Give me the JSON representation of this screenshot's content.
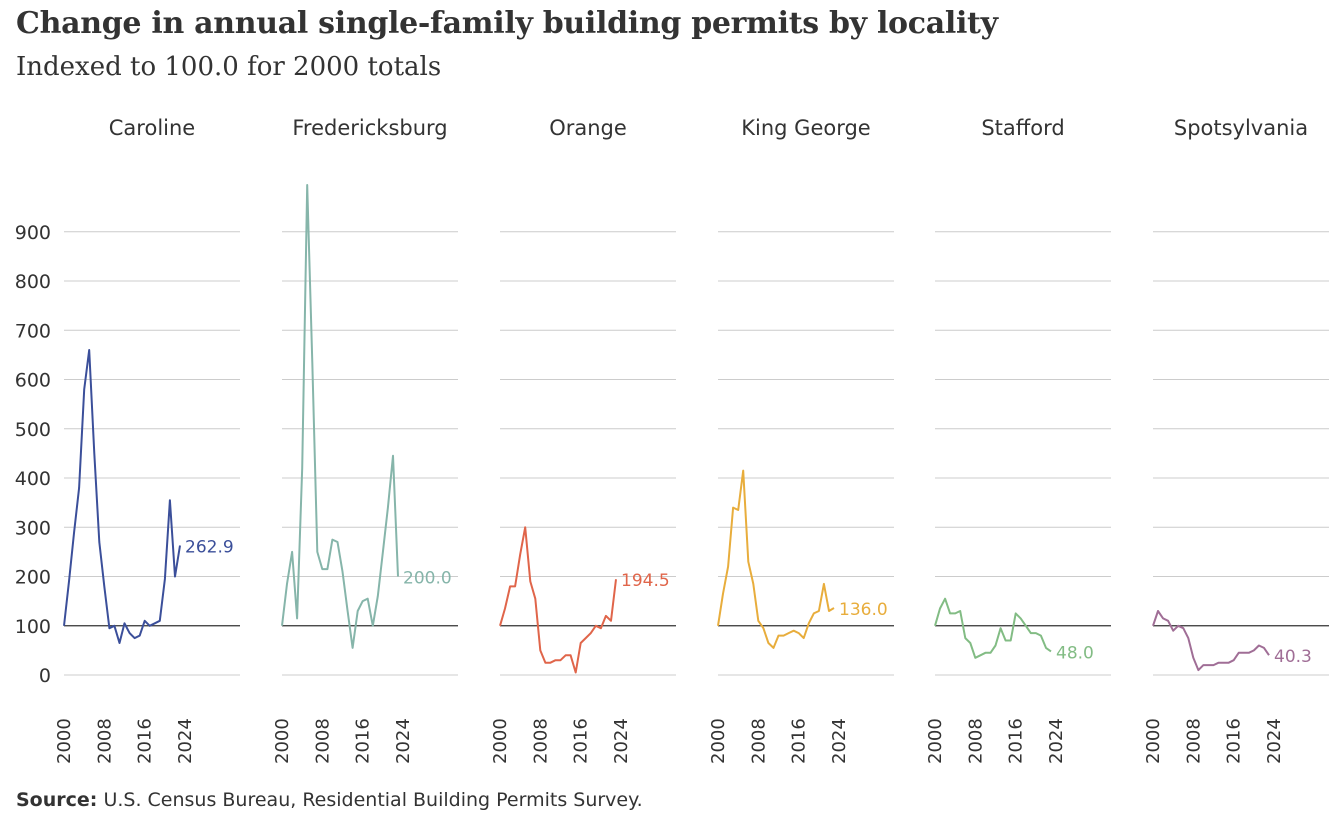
{
  "title": "Change in annual single-family building permits by locality",
  "subtitle": "Indexed to 100.0 for 2000 totals",
  "source_label": "Source:",
  "source_text": "U.S. Census Bureau, Residential Building Permits Survey.",
  "chart_data": {
    "type": "line",
    "layout": "small-multiples",
    "x_ticks": [
      "2000",
      "2008",
      "2016",
      "2024"
    ],
    "y_ticks": [
      "0",
      "100",
      "200",
      "300",
      "400",
      "500",
      "600",
      "700",
      "800",
      "900"
    ],
    "ylim": [
      -60,
      1000
    ],
    "xlim": [
      2000,
      2023
    ],
    "reference_line": 100,
    "grid": "horizontal",
    "years": [
      2000,
      2001,
      2002,
      2003,
      2004,
      2005,
      2006,
      2007,
      2008,
      2009,
      2010,
      2011,
      2012,
      2013,
      2014,
      2015,
      2016,
      2017,
      2018,
      2019,
      2020,
      2021,
      2022,
      2023
    ],
    "panels": [
      {
        "name": "Caroline",
        "color": "#3b4f9a",
        "end_label": "262.9",
        "values": [
          100,
          190,
          290,
          380,
          580,
          660,
          450,
          270,
          180,
          95,
          100,
          65,
          105,
          85,
          75,
          80,
          110,
          100,
          105,
          110,
          195,
          355,
          200,
          262.9
        ]
      },
      {
        "name": "Fredericksburg",
        "color": "#86b5aa",
        "end_label": "200.0",
        "values": [
          100,
          185,
          250,
          115,
          420,
          995,
          635,
          250,
          215,
          215,
          275,
          270,
          210,
          130,
          55,
          130,
          150,
          155,
          100,
          160,
          250,
          340,
          445,
          200.0
        ]
      },
      {
        "name": "Orange",
        "color": "#e0654a",
        "end_label": "194.5",
        "values": [
          100,
          135,
          180,
          180,
          245,
          300,
          190,
          155,
          50,
          25,
          25,
          30,
          30,
          40,
          40,
          5,
          65,
          75,
          85,
          100,
          95,
          120,
          110,
          194.5
        ]
      },
      {
        "name": "King George",
        "color": "#e8ad3c",
        "end_label": "136.0",
        "values": [
          100,
          165,
          220,
          340,
          335,
          415,
          230,
          185,
          110,
          95,
          65,
          55,
          80,
          80,
          85,
          90,
          85,
          75,
          105,
          125,
          130,
          185,
          130,
          136.0
        ]
      },
      {
        "name": "Stafford",
        "color": "#82bc84",
        "end_label": "48.0",
        "values": [
          100,
          135,
          155,
          125,
          125,
          130,
          75,
          65,
          35,
          40,
          45,
          45,
          60,
          95,
          70,
          70,
          125,
          115,
          100,
          85,
          85,
          80,
          55,
          48.0
        ]
      },
      {
        "name": "Spotsylvania",
        "color": "#a06e96",
        "end_label": "40.3",
        "values": [
          100,
          130,
          115,
          110,
          90,
          100,
          95,
          75,
          35,
          10,
          20,
          20,
          20,
          25,
          25,
          25,
          30,
          45,
          45,
          45,
          50,
          60,
          55,
          40.3
        ]
      }
    ]
  }
}
